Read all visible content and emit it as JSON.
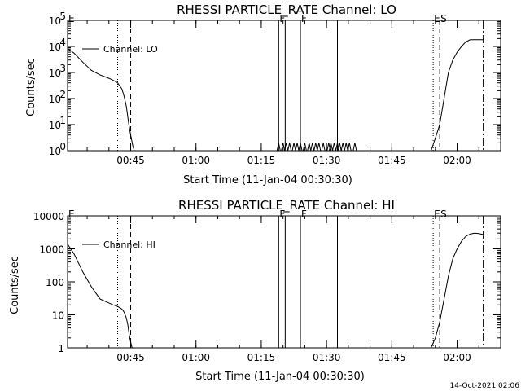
{
  "timestamp": "14-Oct-2021 02:06",
  "chart_data": [
    {
      "type": "line",
      "title": "RHESSI PARTICLE_RATE Channel: LO",
      "xlabel": "Start Time (11-Jan-04 00:30:30)",
      "ylabel": "Counts/sec",
      "y_scale": "log",
      "ylim": [
        1,
        100000
      ],
      "xlim": [
        "00:30:30",
        "02:10:00"
      ],
      "x_ticks": [
        "00:45",
        "01:00",
        "01:15",
        "01:30",
        "01:45",
        "02:00"
      ],
      "y_ticks": [
        "10^0",
        "10^1",
        "10^2",
        "10^3",
        "10^4",
        "10^5"
      ],
      "legend": "top-left",
      "markers": [
        {
          "label": "E",
          "time": "00:30:30",
          "style": "dotted"
        },
        {
          "label": "",
          "time": "00:42:00",
          "style": "dotted"
        },
        {
          "label": "",
          "time": "00:45:00",
          "style": "dashed"
        },
        {
          "label": "F",
          "time": "01:19:00",
          "style": "solid"
        },
        {
          "label": "",
          "time": "01:20:30",
          "style": "solid"
        },
        {
          "label": "F",
          "time": "01:24:00",
          "style": "solid"
        },
        {
          "label": "",
          "time": "01:32:30",
          "style": "solid"
        },
        {
          "label": "E",
          "time": "01:54:30",
          "style": "dotted"
        },
        {
          "label": "S",
          "time": "01:56:00",
          "style": "dashed"
        },
        {
          "label": "",
          "time": "02:06:00",
          "style": "dashdot"
        }
      ],
      "series": [
        {
          "name": "Channel: LO",
          "segments": [
            {
              "x": [
                "00:30:30",
                "00:32:00",
                "00:34:00",
                "00:36:00",
                "00:38:00",
                "00:40:00",
                "00:41:00",
                "00:42:00",
                "00:43:00",
                "00:43:30",
                "00:44:00",
                "00:44:30",
                "00:45:00",
                "00:45:30",
                "00:45:50"
              ],
              "y": [
                8500,
                5500,
                2500,
                1200,
                800,
                600,
                500,
                400,
                230,
                120,
                50,
                12,
                4,
                1.5,
                1
              ]
            },
            {
              "x": [
                "01:54:00",
                "01:55:00",
                "01:56:00",
                "01:57:00",
                "01:58:00",
                "01:59:00",
                "02:00:00",
                "02:01:00",
                "02:02:00",
                "02:03:00",
                "02:04:00",
                "02:05:00",
                "02:06:00"
              ],
              "y": [
                1,
                3,
                10,
                100,
                1000,
                3000,
                6000,
                10000,
                15000,
                18000,
                18000,
                18000,
                18000
              ]
            }
          ],
          "spike_times": [
            "01:19:00",
            "01:20:00",
            "01:20:45",
            "01:21:30",
            "01:22:30",
            "01:23:15",
            "01:24:00",
            "01:25:00",
            "01:26:00",
            "01:26:45",
            "01:27:30",
            "01:28:15",
            "01:29:15",
            "01:30:30",
            "01:31:00",
            "01:31:45",
            "01:32:30",
            "01:33:00",
            "01:33:45",
            "01:34:30",
            "01:35:15",
            "01:36:30"
          ],
          "spike_peak": 2
        }
      ]
    },
    {
      "type": "line",
      "title": "RHESSI PARTICLE_RATE Channel: HI",
      "xlabel": "Start Time (11-Jan-04 00:30:30)",
      "ylabel": "Counts/sec",
      "y_scale": "log",
      "ylim": [
        1,
        10000
      ],
      "xlim": [
        "00:30:30",
        "02:10:00"
      ],
      "x_ticks": [
        "00:45",
        "01:00",
        "01:15",
        "01:30",
        "01:45",
        "02:00"
      ],
      "y_ticks": [
        "1",
        "10",
        "100",
        "1000",
        "10000"
      ],
      "legend": "top-left",
      "markers": [
        {
          "label": "E",
          "time": "00:30:30",
          "style": "dotted"
        },
        {
          "label": "",
          "time": "00:42:00",
          "style": "dotted"
        },
        {
          "label": "",
          "time": "00:45:00",
          "style": "dashed"
        },
        {
          "label": "F",
          "time": "01:19:00",
          "style": "solid"
        },
        {
          "label": "",
          "time": "01:20:30",
          "style": "solid"
        },
        {
          "label": "F",
          "time": "01:24:00",
          "style": "solid"
        },
        {
          "label": "",
          "time": "01:32:30",
          "style": "solid"
        },
        {
          "label": "E",
          "time": "01:54:30",
          "style": "dotted"
        },
        {
          "label": "S",
          "time": "01:56:00",
          "style": "dashed"
        },
        {
          "label": "",
          "time": "02:06:00",
          "style": "dashdot"
        }
      ],
      "series": [
        {
          "name": "Channel: HI",
          "segments": [
            {
              "x": [
                "00:30:30",
                "00:32:00",
                "00:34:00",
                "00:36:00",
                "00:38:00",
                "00:40:00",
                "00:41:00",
                "00:42:00",
                "00:43:00",
                "00:43:30",
                "00:44:00",
                "00:44:20",
                "00:44:40",
                "00:45:00",
                "00:45:20"
              ],
              "y": [
                1400,
                700,
                200,
                70,
                30,
                23,
                20,
                18,
                15,
                12,
                8,
                5,
                2.5,
                1.5,
                1
              ]
            },
            {
              "x": [
                "01:54:00",
                "01:55:00",
                "01:56:00",
                "01:57:00",
                "01:58:00",
                "01:59:00",
                "02:00:00",
                "02:01:00",
                "02:02:00",
                "02:03:00",
                "02:04:00",
                "02:05:00",
                "02:06:00"
              ],
              "y": [
                1,
                2,
                6,
                30,
                150,
                500,
                1000,
                1700,
                2400,
                2800,
                3000,
                2900,
                2700
              ]
            }
          ]
        }
      ]
    }
  ]
}
